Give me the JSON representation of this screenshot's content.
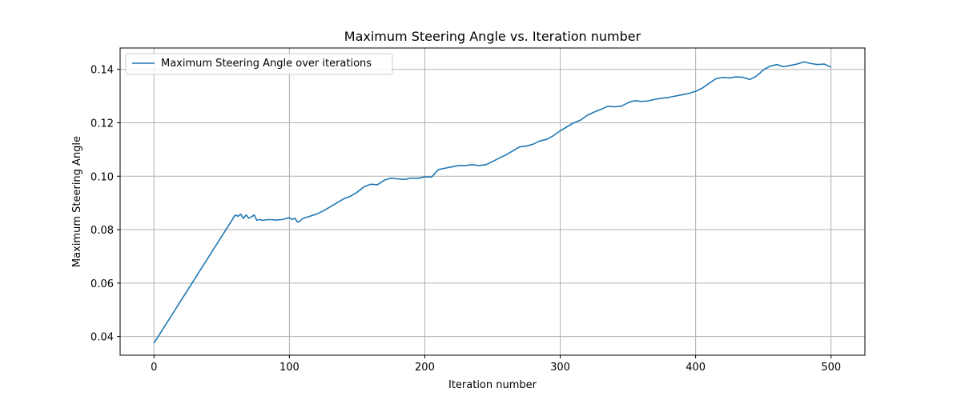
{
  "chart_data": {
    "type": "line",
    "title": "Maximum Steering Angle vs. Iteration number",
    "xlabel": "Iteration number",
    "ylabel": "Maximum Steering Angle",
    "xlim": [
      -25,
      525
    ],
    "ylim": [
      0.033,
      0.148
    ],
    "xticks": [
      0,
      100,
      200,
      300,
      400,
      500
    ],
    "yticks": [
      0.04,
      0.06,
      0.08,
      0.1,
      0.12,
      0.14
    ],
    "ytick_labels": [
      "0.04",
      "0.06",
      "0.08",
      "0.10",
      "0.12",
      "0.14"
    ],
    "grid": true,
    "legend_position": "top-left",
    "series": [
      {
        "name": "Maximum Steering Angle over iterations",
        "color": "#1f77b4",
        "x": [
          0,
          60,
          62,
          64,
          66,
          68,
          70,
          72,
          74,
          76,
          78,
          80,
          85,
          90,
          95,
          100,
          102,
          104,
          106,
          108,
          110,
          115,
          120,
          125,
          130,
          135,
          140,
          145,
          150,
          155,
          160,
          165,
          170,
          175,
          180,
          185,
          190,
          195,
          200,
          205,
          210,
          215,
          220,
          225,
          230,
          235,
          240,
          245,
          250,
          255,
          260,
          265,
          270,
          275,
          280,
          285,
          290,
          295,
          300,
          305,
          310,
          315,
          320,
          325,
          330,
          335,
          340,
          345,
          350,
          355,
          360,
          365,
          370,
          375,
          380,
          385,
          390,
          395,
          400,
          405,
          410,
          415,
          420,
          425,
          430,
          435,
          440,
          445,
          450,
          455,
          460,
          465,
          470,
          475,
          480,
          485,
          490,
          495,
          500
        ],
        "y": [
          0.0375,
          0.0855,
          0.085,
          0.0858,
          0.0842,
          0.0855,
          0.0843,
          0.0848,
          0.0855,
          0.0835,
          0.0838,
          0.0835,
          0.0838,
          0.0836,
          0.0838,
          0.0845,
          0.0838,
          0.0843,
          0.0828,
          0.0833,
          0.0842,
          0.085,
          0.0858,
          0.087,
          0.0885,
          0.09,
          0.0915,
          0.0925,
          0.094,
          0.096,
          0.097,
          0.0968,
          0.0985,
          0.0993,
          0.099,
          0.0988,
          0.0993,
          0.0992,
          0.0998,
          0.0997,
          0.1025,
          0.103,
          0.1035,
          0.104,
          0.104,
          0.1043,
          0.104,
          0.1043,
          0.1055,
          0.1068,
          0.108,
          0.1095,
          0.111,
          0.1113,
          0.112,
          0.1132,
          0.1138,
          0.1152,
          0.117,
          0.1185,
          0.12,
          0.121,
          0.1228,
          0.124,
          0.125,
          0.1262,
          0.126,
          0.1262,
          0.1275,
          0.1283,
          0.128,
          0.1282,
          0.1288,
          0.1292,
          0.1295,
          0.13,
          0.1305,
          0.131,
          0.1318,
          0.133,
          0.1348,
          0.1365,
          0.137,
          0.1368,
          0.1372,
          0.137,
          0.1362,
          0.1375,
          0.1398,
          0.1412,
          0.1418,
          0.141,
          0.1415,
          0.142,
          0.1428,
          0.1422,
          0.1418,
          0.142,
          0.1408
        ]
      }
    ]
  }
}
